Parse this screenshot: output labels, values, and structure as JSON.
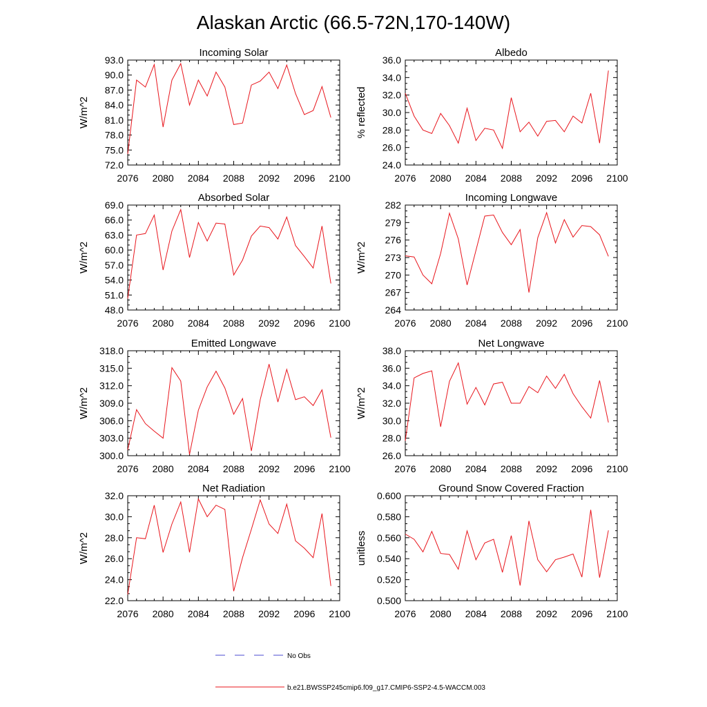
{
  "title": "Alaskan Arctic (66.5-72N,170-140W)",
  "colors": {
    "model": "#e8141b",
    "obs": "#4a4ad0",
    "axis": "#000000"
  },
  "legend": [
    {
      "label": "No Obs",
      "style": "dashed",
      "color": "#4a4ad0"
    },
    {
      "label": "b.e21.BWSSP245cmip6.f09_g17.CMIP6-SSP2-4.5-WACCM.003",
      "style": "solid",
      "color": "#e8141b"
    }
  ],
  "chart_data": [
    {
      "type": "line",
      "title": "Incoming Solar",
      "ylabel": "W/m^2",
      "xlim": [
        2076,
        2100
      ],
      "xticks": [
        "2076",
        "2080",
        "2084",
        "2088",
        "2092",
        "2096",
        "2100"
      ],
      "ylim": [
        72.0,
        93.0
      ],
      "yticks": [
        "72.0",
        "75.0",
        "78.0",
        "81.0",
        "84.0",
        "87.0",
        "90.0",
        "93.0"
      ],
      "x": [
        2076,
        2077,
        2078,
        2079,
        2080,
        2081,
        2082,
        2083,
        2084,
        2085,
        2086,
        2087,
        2088,
        2089,
        2090,
        2091,
        2092,
        2093,
        2094,
        2095,
        2096,
        2097,
        2098,
        2099
      ],
      "series": [
        {
          "name": "b.e21.BWSSP245cmip6.f09_g17.CMIP6-SSP2-4.5-WACCM.003",
          "values": [
            74.2,
            89.0,
            87.6,
            92.1,
            79.6,
            89.0,
            92.3,
            84.0,
            89.0,
            85.8,
            90.6,
            87.6,
            80.1,
            80.4,
            88.0,
            88.8,
            90.6,
            87.3,
            92.0,
            86.3,
            82.1,
            82.9,
            87.7,
            81.5
          ]
        }
      ]
    },
    {
      "type": "line",
      "title": "Albedo",
      "ylabel": "% reflected",
      "xlim": [
        2076,
        2100
      ],
      "xticks": [
        "2076",
        "2080",
        "2084",
        "2088",
        "2092",
        "2096",
        "2100"
      ],
      "ylim": [
        24.0,
        36.0
      ],
      "yticks": [
        "24.0",
        "26.0",
        "28.0",
        "30.0",
        "32.0",
        "34.0",
        "36.0"
      ],
      "x": [
        2076,
        2077,
        2078,
        2079,
        2080,
        2081,
        2082,
        2083,
        2084,
        2085,
        2086,
        2087,
        2088,
        2089,
        2090,
        2091,
        2092,
        2093,
        2094,
        2095,
        2096,
        2097,
        2098,
        2099
      ],
      "series": [
        {
          "name": "b.e21.BWSSP245cmip6.f09_g17.CMIP6-SSP2-4.5-WACCM.003",
          "values": [
            32.2,
            29.6,
            28.0,
            27.6,
            29.9,
            28.5,
            26.5,
            30.5,
            26.8,
            28.2,
            28.0,
            25.9,
            31.7,
            27.8,
            28.9,
            27.3,
            29.0,
            29.1,
            27.8,
            29.6,
            28.8,
            32.2,
            26.5,
            34.8
          ]
        }
      ]
    },
    {
      "type": "line",
      "title": "Absorbed Solar",
      "ylabel": "W/m^2",
      "xlim": [
        2076,
        2100
      ],
      "xticks": [
        "2076",
        "2080",
        "2084",
        "2088",
        "2092",
        "2096",
        "2100"
      ],
      "ylim": [
        48.0,
        69.0
      ],
      "yticks": [
        "48.0",
        "51.0",
        "54.0",
        "57.0",
        "60.0",
        "63.0",
        "66.0",
        "69.0"
      ],
      "x": [
        2076,
        2077,
        2078,
        2079,
        2080,
        2081,
        2082,
        2083,
        2084,
        2085,
        2086,
        2087,
        2088,
        2089,
        2090,
        2091,
        2092,
        2093,
        2094,
        2095,
        2096,
        2097,
        2098,
        2099
      ],
      "series": [
        {
          "name": "b.e21.BWSSP245cmip6.f09_g17.CMIP6-SSP2-4.5-WACCM.003",
          "values": [
            50.3,
            63.0,
            63.3,
            67.0,
            56.0,
            63.8,
            68.1,
            58.5,
            65.5,
            61.8,
            65.4,
            65.2,
            55.0,
            58.0,
            62.8,
            64.8,
            64.5,
            62.2,
            66.6,
            60.9,
            58.7,
            56.4,
            64.8,
            53.3
          ]
        }
      ]
    },
    {
      "type": "line",
      "title": "Incoming Longwave",
      "ylabel": "W/m^2",
      "xlim": [
        2076,
        2100
      ],
      "xticks": [
        "2076",
        "2080",
        "2084",
        "2088",
        "2092",
        "2096",
        "2100"
      ],
      "ylim": [
        264,
        282
      ],
      "yticks": [
        "264",
        "267",
        "270",
        "273",
        "276",
        "279",
        "282"
      ],
      "x": [
        2076,
        2077,
        2078,
        2079,
        2080,
        2081,
        2082,
        2083,
        2084,
        2085,
        2086,
        2087,
        2088,
        2089,
        2090,
        2091,
        2092,
        2093,
        2094,
        2095,
        2096,
        2097,
        2098,
        2099
      ],
      "series": [
        {
          "name": "b.e21.BWSSP245cmip6.f09_g17.CMIP6-SSP2-4.5-WACCM.003",
          "values": [
            273.3,
            273.1,
            270.0,
            268.5,
            273.7,
            280.6,
            276.2,
            268.3,
            274.2,
            280.1,
            280.3,
            277.3,
            275.2,
            277.8,
            267.0,
            276.4,
            280.7,
            275.5,
            279.5,
            276.5,
            278.5,
            278.3,
            276.9,
            273.2
          ]
        }
      ]
    },
    {
      "type": "line",
      "title": "Emitted Longwave",
      "ylabel": "W/m^2",
      "xlim": [
        2076,
        2100
      ],
      "xticks": [
        "2076",
        "2080",
        "2084",
        "2088",
        "2092",
        "2096",
        "2100"
      ],
      "ylim": [
        300.0,
        318.0
      ],
      "yticks": [
        "300.0",
        "303.0",
        "306.0",
        "309.0",
        "312.0",
        "315.0",
        "318.0"
      ],
      "x": [
        2076,
        2077,
        2078,
        2079,
        2080,
        2081,
        2082,
        2083,
        2084,
        2085,
        2086,
        2087,
        2088,
        2089,
        2090,
        2091,
        2092,
        2093,
        2094,
        2095,
        2096,
        2097,
        2098,
        2099
      ],
      "series": [
        {
          "name": "b.e21.BWSSP245cmip6.f09_g17.CMIP6-SSP2-4.5-WACCM.003",
          "values": [
            301.0,
            307.9,
            305.5,
            304.2,
            303.0,
            315.1,
            312.8,
            300.2,
            307.8,
            311.8,
            314.5,
            311.6,
            307.1,
            309.8,
            300.8,
            309.6,
            315.7,
            309.2,
            314.8,
            309.6,
            310.1,
            308.6,
            311.3,
            303.1
          ]
        }
      ]
    },
    {
      "type": "line",
      "title": "Net Longwave",
      "ylabel": "W/m^2",
      "xlim": [
        2076,
        2100
      ],
      "xticks": [
        "2076",
        "2080",
        "2084",
        "2088",
        "2092",
        "2096",
        "2100"
      ],
      "ylim": [
        26.0,
        38.0
      ],
      "yticks": [
        "26.0",
        "28.0",
        "30.0",
        "32.0",
        "34.0",
        "36.0",
        "38.0"
      ],
      "x": [
        2076,
        2077,
        2078,
        2079,
        2080,
        2081,
        2082,
        2083,
        2084,
        2085,
        2086,
        2087,
        2088,
        2089,
        2090,
        2091,
        2092,
        2093,
        2094,
        2095,
        2096,
        2097,
        2098,
        2099
      ],
      "series": [
        {
          "name": "b.e21.BWSSP245cmip6.f09_g17.CMIP6-SSP2-4.5-WACCM.003",
          "values": [
            27.7,
            34.9,
            35.4,
            35.7,
            29.3,
            34.5,
            36.6,
            31.9,
            33.8,
            31.8,
            34.2,
            34.4,
            32.0,
            32.0,
            33.9,
            33.2,
            35.1,
            33.7,
            35.3,
            33.1,
            31.6,
            30.3,
            34.6,
            29.8
          ]
        }
      ]
    },
    {
      "type": "line",
      "title": "Net Radiation",
      "ylabel": "W/m^2",
      "xlim": [
        2076,
        2100
      ],
      "xticks": [
        "2076",
        "2080",
        "2084",
        "2088",
        "2092",
        "2096",
        "2100"
      ],
      "ylim": [
        22.0,
        32.0
      ],
      "yticks": [
        "22.0",
        "24.0",
        "26.0",
        "28.0",
        "30.0",
        "32.0"
      ],
      "x": [
        2076,
        2077,
        2078,
        2079,
        2080,
        2081,
        2082,
        2083,
        2084,
        2085,
        2086,
        2087,
        2088,
        2089,
        2090,
        2091,
        2092,
        2093,
        2094,
        2095,
        2096,
        2097,
        2098,
        2099
      ],
      "series": [
        {
          "name": "b.e21.BWSSP245cmip6.f09_g17.CMIP6-SSP2-4.5-WACCM.003",
          "values": [
            22.6,
            28.0,
            27.9,
            31.1,
            26.6,
            29.3,
            31.4,
            26.6,
            31.7,
            30.0,
            31.1,
            30.7,
            22.9,
            26.1,
            28.8,
            31.6,
            29.3,
            28.4,
            31.2,
            27.7,
            27.0,
            26.1,
            30.3,
            23.4
          ]
        }
      ]
    },
    {
      "type": "line",
      "title": "Ground Snow Covered Fraction",
      "ylabel": "unitless",
      "xlim": [
        2076,
        2100
      ],
      "xticks": [
        "2076",
        "2080",
        "2084",
        "2088",
        "2092",
        "2096",
        "2100"
      ],
      "ylim": [
        0.5,
        0.6
      ],
      "yticks": [
        "0.500",
        "0.520",
        "0.540",
        "0.560",
        "0.580",
        "0.600"
      ],
      "x": [
        2076,
        2077,
        2078,
        2079,
        2080,
        2081,
        2082,
        2083,
        2084,
        2085,
        2086,
        2087,
        2088,
        2089,
        2090,
        2091,
        2092,
        2093,
        2094,
        2095,
        2096,
        2097,
        2098,
        2099
      ],
      "series": [
        {
          "name": "b.e21.BWSSP245cmip6.f09_g17.CMIP6-SSP2-4.5-WACCM.003",
          "values": [
            0.5635,
            0.5585,
            0.5465,
            0.566,
            0.545,
            0.544,
            0.53,
            0.5665,
            0.539,
            0.555,
            0.5585,
            0.527,
            0.562,
            0.5145,
            0.576,
            0.539,
            0.5275,
            0.539,
            0.5415,
            0.5445,
            0.5225,
            0.5865,
            0.522,
            0.567
          ]
        }
      ]
    }
  ]
}
